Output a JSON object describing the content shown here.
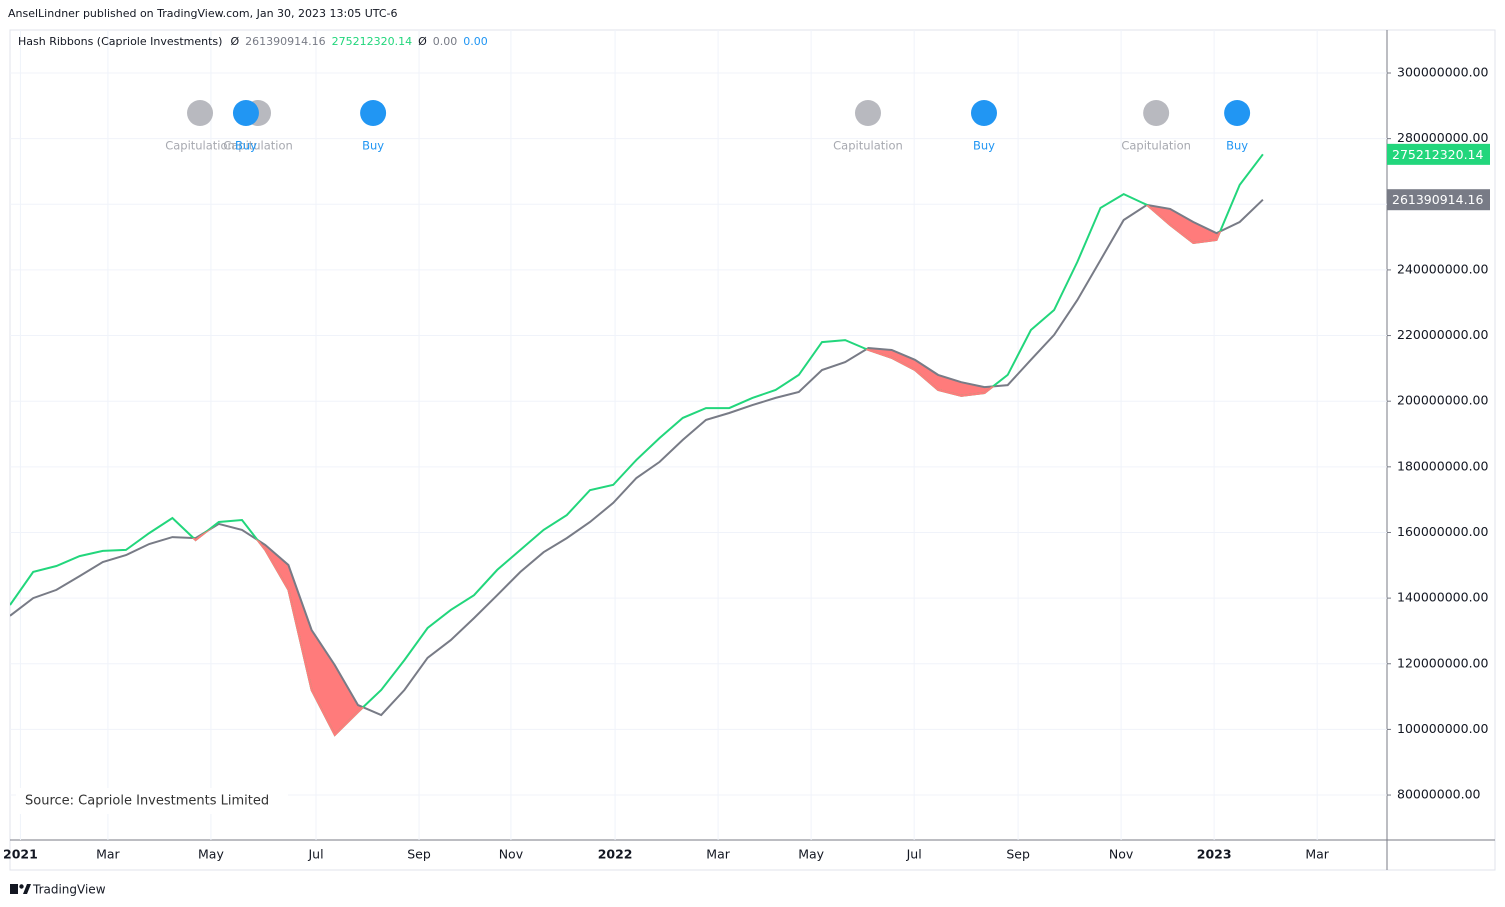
{
  "header": {
    "publisher": "AnselLindner published on TradingView.com, Jan 30, 2023 13:05 UTC-6",
    "brand": "TradingView"
  },
  "chart_data": {
    "type": "line",
    "indicator": "Hash Ribbons (Capriole Investments)",
    "value_symbol": "Ø",
    "signal_values": [
      "0.00",
      "0.00"
    ],
    "source": "Source: Capriole Investments Limited",
    "categories": [
      null,
      null,
      null,
      null,
      null,
      null,
      null,
      null,
      null,
      null,
      null,
      null,
      null,
      null,
      null,
      null,
      null,
      null,
      null,
      null,
      null,
      null,
      null,
      null,
      null,
      null,
      null,
      null,
      null,
      null,
      null,
      null,
      null,
      null,
      null,
      null,
      null,
      null,
      null,
      null,
      null,
      null,
      null,
      null,
      null,
      null,
      null,
      null,
      null,
      null,
      null,
      null,
      null,
      null,
      null
    ],
    "series": [
      {
        "color": "#787b86",
        "values": [
          134600000,
          140000000,
          142500000,
          146700000,
          151000000,
          153100000,
          156500000,
          158600000,
          158300000,
          162600000,
          160800000,
          156200000,
          150100000,
          130300000,
          119600000,
          107400000,
          104400000,
          112000000,
          121800000,
          127200000,
          133900000,
          140900000,
          148000000,
          154000000,
          158300000,
          163200000,
          169000000,
          176600000,
          181500000,
          188200000,
          194300000,
          196400000,
          198800000,
          201000000,
          202800000,
          209500000,
          211900000,
          216200000,
          215600000,
          212600000,
          208000000,
          205800000,
          204300000,
          204900000,
          212600000,
          220200000,
          230800000,
          243000000,
          255200000,
          259800000,
          258600000,
          254600000,
          251200000,
          254600000,
          261390914.16
        ]
      },
      {
        "color": "#22d67c",
        "values": [
          137900000,
          148000000,
          149800000,
          152800000,
          154400000,
          154700000,
          159800000,
          164400000,
          157700000,
          163200000,
          163800000,
          154700000,
          142500000,
          112000000,
          98300000,
          105300000,
          112000000,
          121100000,
          130900000,
          136400000,
          140900000,
          148600000,
          154700000,
          160800000,
          165300000,
          172900000,
          174500000,
          182100000,
          188800000,
          194900000,
          197900000,
          197900000,
          201000000,
          203400000,
          208000000,
          218000000,
          218600000,
          215600000,
          213200000,
          209500000,
          203400000,
          201600000,
          202500000,
          208000000,
          221700000,
          227800000,
          242400000,
          258900000,
          263100000,
          259800000,
          253700000,
          248200000,
          249100000,
          265900000,
          275212320.14
        ]
      }
    ],
    "fill_color": "#ff7b7b",
    "xlim": [
      0,
      59.35
    ],
    "xticks": [
      {
        "value": 0.45,
        "label": "2021"
      },
      {
        "value": 4.22,
        "label": "Mar"
      },
      {
        "value": 8.66,
        "label": "May"
      },
      {
        "value": 13.19,
        "label": "Jul"
      },
      {
        "value": 17.63,
        "label": "Sep"
      },
      {
        "value": 21.59,
        "label": "Nov"
      },
      {
        "value": 26.08,
        "label": "2022"
      },
      {
        "value": 30.52,
        "label": "Mar"
      },
      {
        "value": 34.53,
        "label": "May"
      },
      {
        "value": 38.97,
        "label": "Jul"
      },
      {
        "value": 43.45,
        "label": "Sep"
      },
      {
        "value": 47.89,
        "label": "Nov"
      },
      {
        "value": 51.9,
        "label": "2023"
      },
      {
        "value": 56.34,
        "label": "Mar"
      }
    ],
    "ylim": [
      66300000,
      313100000
    ],
    "yticks": [
      {
        "value": 80000000,
        "label": "80000000.00"
      },
      {
        "value": 100000000,
        "label": "100000000.00"
      },
      {
        "value": 120000000,
        "label": "120000000.00"
      },
      {
        "value": 140000000,
        "label": "140000000.00"
      },
      {
        "value": 160000000,
        "label": "160000000.00"
      },
      {
        "value": 180000000,
        "label": "180000000.00"
      },
      {
        "value": 200000000,
        "label": "200000000.00"
      },
      {
        "value": 220000000,
        "label": "220000000.00"
      },
      {
        "value": 240000000,
        "label": "240000000.00"
      },
      {
        "value": 260000000,
        "label": "260000000.00"
      },
      {
        "value": 280000000,
        "label": "280000000.00"
      },
      {
        "value": 300000000,
        "label": "300000000.00"
      }
    ],
    "grid": true,
    "signals": [
      {
        "label": "Capitulation",
        "color": "#b8b9bf",
        "text_color": "#a7a9b0",
        "x": 8.19
      },
      {
        "label": "Capitulation",
        "color": "#b8b9bf",
        "text_color": "#a7a9b0",
        "x": 10.69
      },
      {
        "label": "Buy",
        "color": "#2196f3",
        "text_color": "#2196f3",
        "x": 10.17
      },
      {
        "label": "Buy",
        "color": "#2196f3",
        "text_color": "#2196f3",
        "x": 15.65
      },
      {
        "label": "Capitulation",
        "color": "#b8b9bf",
        "text_color": "#a7a9b0",
        "x": 36.98
      },
      {
        "label": "Buy",
        "color": "#2196f3",
        "text_color": "#2196f3",
        "x": 41.98
      },
      {
        "label": "Capitulation",
        "color": "#b8b9bf",
        "text_color": "#a7a9b0",
        "x": 49.4
      },
      {
        "label": "Buy",
        "color": "#2196f3",
        "text_color": "#2196f3",
        "x": 52.89
      }
    ]
  }
}
